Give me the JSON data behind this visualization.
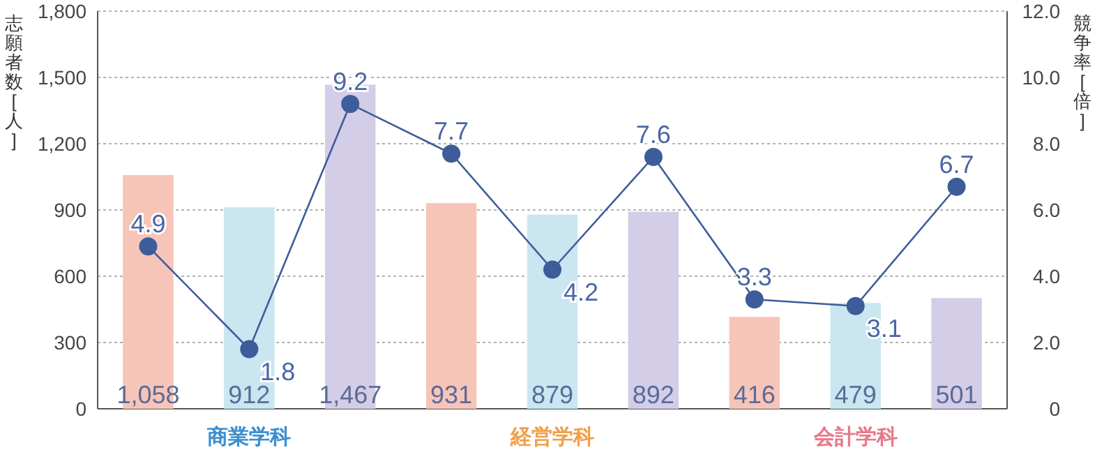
{
  "chart_data": {
    "type": "bar",
    "ylabel": "志願者数[人]",
    "y2label": "競争率[倍]",
    "categories": [
      null,
      "商業学科",
      null,
      null,
      "経営学科",
      null,
      null,
      "会計学科",
      null
    ],
    "series": [
      {
        "colors": [
          "#f7c5b8",
          "#c9e6f1",
          "#d3cde7",
          "#f7c5b8",
          "#c9e6f1",
          "#d3cde7",
          "#f7c5b8",
          "#c9e6f1",
          "#d3cde7"
        ],
        "values": [
          1058,
          912,
          1467,
          931,
          879,
          892,
          416,
          479,
          501
        ],
        "value_labels": [
          "1,058",
          "912",
          "1,467",
          "931",
          "879",
          "892",
          "416",
          "479",
          "501"
        ]
      },
      {
        "type": "line",
        "axis": "y2",
        "color": "#3d5c9a",
        "marker": "circle",
        "values": [
          4.9,
          1.8,
          9.2,
          7.7,
          4.2,
          7.6,
          3.3,
          3.1,
          6.7
        ]
      }
    ],
    "ylim": [
      0,
      1800
    ],
    "yticks": [
      0,
      {
        "value": 300,
        "label": "300"
      },
      {
        "value": 600,
        "label": "600"
      },
      {
        "value": 900,
        "label": "900"
      },
      {
        "value": 1200,
        "label": "1,200"
      },
      {
        "value": 1500,
        "label": "1,500"
      },
      {
        "value": 1800,
        "label": "1,800"
      }
    ],
    "y2lim": [
      0,
      12
    ],
    "y2ticks": [
      0,
      {
        "value": 2,
        "label": "2.0"
      },
      {
        "value": 4,
        "label": "4.0"
      },
      {
        "value": 6,
        "label": "6.0"
      },
      {
        "value": 8,
        "label": "8.0"
      },
      {
        "value": 10,
        "label": "10.0"
      },
      {
        "value": 12,
        "label": "12.0"
      }
    ],
    "grid": "y",
    "data_labels": true
  }
}
